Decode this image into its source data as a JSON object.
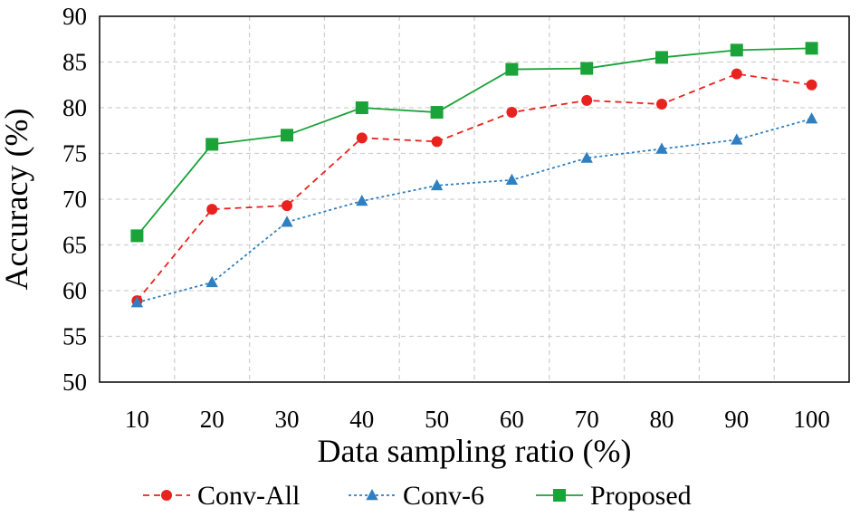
{
  "chart_data": {
    "type": "line",
    "title": "",
    "xlabel": "Data sampling ratio (%)",
    "ylabel": "Accuracy (%)",
    "categories": [
      "10",
      "20",
      "30",
      "40",
      "50",
      "60",
      "70",
      "80",
      "90",
      "100"
    ],
    "y_ticks": [
      "50",
      "55",
      "60",
      "65",
      "70",
      "75",
      "80",
      "85",
      "90"
    ],
    "ylim": [
      50,
      90
    ],
    "grid": true,
    "legend_position": "bottom",
    "series": [
      {
        "name": "Conv-All",
        "color": "#e8231f",
        "line_style": "dashed",
        "marker": "circle",
        "values": [
          58.9,
          68.9,
          69.3,
          76.7,
          76.3,
          79.5,
          80.8,
          80.4,
          83.7,
          82.5
        ]
      },
      {
        "name": "Conv-6",
        "color": "#2f7fc1",
        "line_style": "dotted",
        "marker": "triangle",
        "values": [
          58.7,
          60.9,
          67.5,
          69.8,
          71.5,
          72.1,
          74.5,
          75.5,
          76.5,
          78.8
        ]
      },
      {
        "name": "Proposed",
        "color": "#1aa339",
        "line_style": "solid",
        "marker": "square",
        "values": [
          66.0,
          76.0,
          77.0,
          80.0,
          79.5,
          84.2,
          84.3,
          85.5,
          86.3,
          86.5
        ]
      }
    ]
  }
}
